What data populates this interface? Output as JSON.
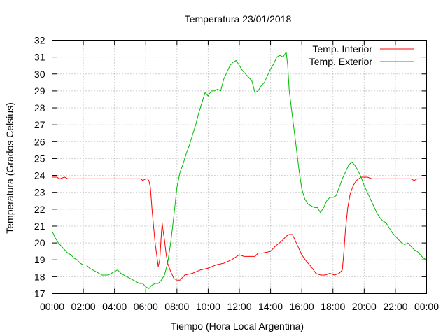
{
  "chart_data": {
    "type": "line",
    "title": "Temperatura 23/01/2018",
    "xlabel": "Tiempo (Hora Local Argentina)",
    "ylabel": "Temperatura (Grados Celsius)",
    "x_unit": "hours",
    "xlim": [
      0,
      24
    ],
    "ylim": [
      17,
      32
    ],
    "x_ticks": [
      0,
      2,
      4,
      6,
      8,
      10,
      12,
      14,
      16,
      18,
      20,
      22,
      24
    ],
    "x_tick_labels": [
      "00:00",
      "02:00",
      "04:00",
      "06:00",
      "08:00",
      "10:00",
      "12:00",
      "14:00",
      "16:00",
      "18:00",
      "20:00",
      "22:00",
      "00:00"
    ],
    "y_ticks": [
      17,
      18,
      19,
      20,
      21,
      22,
      23,
      24,
      25,
      26,
      27,
      28,
      29,
      30,
      31,
      32
    ],
    "y_tick_labels": [
      "17",
      "18",
      "19",
      "20",
      "21",
      "22",
      "23",
      "24",
      "25",
      "26",
      "27",
      "28",
      "29",
      "30",
      "31",
      "32"
    ],
    "grid": true,
    "legend_position": "top-right",
    "series": [
      {
        "name": "Temp. Interior",
        "color": "#ff0000",
        "points": [
          [
            0.0,
            23.9
          ],
          [
            0.3,
            23.9
          ],
          [
            0.5,
            23.8
          ],
          [
            0.8,
            23.9
          ],
          [
            1.0,
            23.8
          ],
          [
            2.0,
            23.8
          ],
          [
            3.0,
            23.8
          ],
          [
            4.0,
            23.8
          ],
          [
            5.0,
            23.8
          ],
          [
            5.5,
            23.8
          ],
          [
            5.7,
            23.8
          ],
          [
            5.8,
            23.7
          ],
          [
            6.0,
            23.8
          ],
          [
            6.1,
            23.8
          ],
          [
            6.2,
            23.7
          ],
          [
            6.3,
            23.3
          ],
          [
            6.4,
            22.0
          ],
          [
            6.5,
            21.0
          ],
          [
            6.6,
            20.0
          ],
          [
            6.7,
            19.3
          ],
          [
            6.8,
            18.6
          ],
          [
            6.9,
            19.0
          ],
          [
            7.0,
            20.5
          ],
          [
            7.05,
            21.2
          ],
          [
            7.1,
            20.8
          ],
          [
            7.2,
            20.2
          ],
          [
            7.3,
            19.4
          ],
          [
            7.4,
            18.8
          ],
          [
            7.6,
            18.3
          ],
          [
            7.8,
            17.9
          ],
          [
            8.0,
            17.8
          ],
          [
            8.2,
            17.8
          ],
          [
            8.5,
            18.1
          ],
          [
            9.0,
            18.2
          ],
          [
            9.5,
            18.4
          ],
          [
            10.0,
            18.5
          ],
          [
            10.5,
            18.7
          ],
          [
            11.0,
            18.8
          ],
          [
            11.5,
            19.0
          ],
          [
            12.0,
            19.3
          ],
          [
            12.3,
            19.2
          ],
          [
            12.5,
            19.2
          ],
          [
            13.0,
            19.2
          ],
          [
            13.2,
            19.4
          ],
          [
            13.5,
            19.4
          ],
          [
            14.0,
            19.5
          ],
          [
            14.3,
            19.8
          ],
          [
            14.7,
            20.1
          ],
          [
            15.0,
            20.4
          ],
          [
            15.2,
            20.5
          ],
          [
            15.4,
            20.5
          ],
          [
            15.6,
            20.1
          ],
          [
            15.8,
            19.7
          ],
          [
            16.0,
            19.3
          ],
          [
            16.3,
            18.9
          ],
          [
            16.6,
            18.6
          ],
          [
            16.9,
            18.2
          ],
          [
            17.2,
            18.1
          ],
          [
            17.5,
            18.1
          ],
          [
            17.8,
            18.2
          ],
          [
            18.1,
            18.1
          ],
          [
            18.4,
            18.2
          ],
          [
            18.6,
            18.4
          ],
          [
            18.7,
            19.5
          ],
          [
            18.8,
            20.8
          ],
          [
            18.95,
            22.1
          ],
          [
            19.1,
            22.9
          ],
          [
            19.3,
            23.4
          ],
          [
            19.5,
            23.7
          ],
          [
            19.8,
            23.9
          ],
          [
            20.2,
            23.9
          ],
          [
            20.5,
            23.8
          ],
          [
            21.0,
            23.8
          ],
          [
            22.0,
            23.8
          ],
          [
            23.0,
            23.8
          ],
          [
            23.2,
            23.7
          ],
          [
            23.4,
            23.8
          ],
          [
            24.0,
            23.8
          ]
        ]
      },
      {
        "name": "Temp. Exterior",
        "color": "#00bb00",
        "points": [
          [
            0.0,
            20.7
          ],
          [
            0.2,
            20.3
          ],
          [
            0.4,
            20.0
          ],
          [
            0.6,
            19.8
          ],
          [
            0.8,
            19.6
          ],
          [
            1.0,
            19.4
          ],
          [
            1.2,
            19.3
          ],
          [
            1.4,
            19.1
          ],
          [
            1.6,
            19.0
          ],
          [
            1.8,
            18.8
          ],
          [
            2.0,
            18.7
          ],
          [
            2.2,
            18.7
          ],
          [
            2.4,
            18.5
          ],
          [
            2.6,
            18.4
          ],
          [
            2.8,
            18.3
          ],
          [
            3.0,
            18.2
          ],
          [
            3.2,
            18.1
          ],
          [
            3.4,
            18.1
          ],
          [
            3.6,
            18.1
          ],
          [
            3.8,
            18.2
          ],
          [
            4.0,
            18.3
          ],
          [
            4.2,
            18.4
          ],
          [
            4.4,
            18.2
          ],
          [
            4.6,
            18.1
          ],
          [
            4.8,
            18.0
          ],
          [
            5.0,
            17.9
          ],
          [
            5.2,
            17.8
          ],
          [
            5.4,
            17.7
          ],
          [
            5.6,
            17.6
          ],
          [
            5.8,
            17.6
          ],
          [
            6.0,
            17.4
          ],
          [
            6.2,
            17.3
          ],
          [
            6.4,
            17.5
          ],
          [
            6.6,
            17.6
          ],
          [
            6.8,
            17.6
          ],
          [
            7.0,
            17.8
          ],
          [
            7.2,
            18.1
          ],
          [
            7.4,
            18.8
          ],
          [
            7.6,
            20.0
          ],
          [
            7.8,
            21.6
          ],
          [
            8.0,
            23.3
          ],
          [
            8.2,
            24.2
          ],
          [
            8.4,
            24.7
          ],
          [
            8.6,
            25.3
          ],
          [
            8.8,
            25.8
          ],
          [
            9.0,
            26.4
          ],
          [
            9.2,
            27.0
          ],
          [
            9.4,
            27.7
          ],
          [
            9.6,
            28.3
          ],
          [
            9.8,
            28.9
          ],
          [
            10.0,
            28.7
          ],
          [
            10.2,
            29.0
          ],
          [
            10.4,
            29.0
          ],
          [
            10.6,
            29.1
          ],
          [
            10.8,
            29.0
          ],
          [
            11.0,
            29.7
          ],
          [
            11.2,
            30.1
          ],
          [
            11.4,
            30.5
          ],
          [
            11.6,
            30.7
          ],
          [
            11.8,
            30.8
          ],
          [
            12.0,
            30.5
          ],
          [
            12.2,
            30.2
          ],
          [
            12.4,
            30.0
          ],
          [
            12.6,
            29.8
          ],
          [
            12.8,
            29.6
          ],
          [
            13.0,
            28.9
          ],
          [
            13.2,
            29.0
          ],
          [
            13.4,
            29.3
          ],
          [
            13.6,
            29.5
          ],
          [
            13.8,
            29.9
          ],
          [
            14.0,
            30.3
          ],
          [
            14.2,
            30.6
          ],
          [
            14.4,
            31.0
          ],
          [
            14.6,
            31.1
          ],
          [
            14.8,
            31.0
          ],
          [
            15.0,
            31.3
          ],
          [
            15.1,
            30.5
          ],
          [
            15.2,
            29.0
          ],
          [
            15.4,
            27.5
          ],
          [
            15.6,
            26.0
          ],
          [
            15.8,
            24.5
          ],
          [
            16.0,
            23.2
          ],
          [
            16.2,
            22.6
          ],
          [
            16.4,
            22.3
          ],
          [
            16.6,
            22.2
          ],
          [
            16.8,
            22.1
          ],
          [
            17.0,
            22.1
          ],
          [
            17.2,
            21.8
          ],
          [
            17.4,
            22.1
          ],
          [
            17.6,
            22.5
          ],
          [
            17.8,
            22.7
          ],
          [
            18.0,
            22.7
          ],
          [
            18.2,
            22.8
          ],
          [
            18.4,
            23.3
          ],
          [
            18.6,
            23.8
          ],
          [
            18.8,
            24.2
          ],
          [
            19.0,
            24.6
          ],
          [
            19.2,
            24.8
          ],
          [
            19.4,
            24.6
          ],
          [
            19.6,
            24.3
          ],
          [
            19.8,
            23.9
          ],
          [
            20.0,
            23.4
          ],
          [
            20.2,
            23.0
          ],
          [
            20.4,
            22.6
          ],
          [
            20.6,
            22.2
          ],
          [
            20.8,
            21.8
          ],
          [
            21.0,
            21.5
          ],
          [
            21.2,
            21.3
          ],
          [
            21.4,
            21.2
          ],
          [
            21.6,
            20.9
          ],
          [
            21.8,
            20.6
          ],
          [
            22.0,
            20.4
          ],
          [
            22.2,
            20.2
          ],
          [
            22.4,
            20.0
          ],
          [
            22.6,
            19.9
          ],
          [
            22.8,
            20.0
          ],
          [
            23.0,
            19.8
          ],
          [
            23.2,
            19.6
          ],
          [
            23.4,
            19.5
          ],
          [
            23.6,
            19.3
          ],
          [
            23.8,
            19.1
          ],
          [
            24.0,
            19.0
          ]
        ]
      }
    ]
  }
}
